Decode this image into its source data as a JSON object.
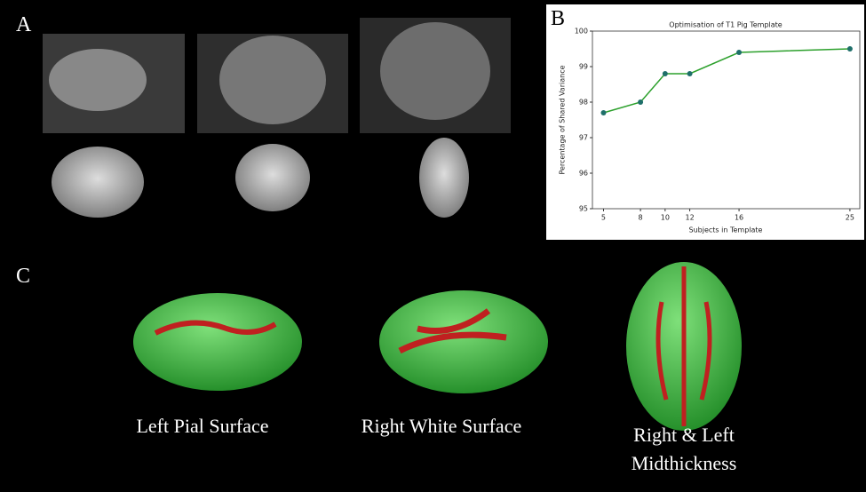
{
  "panels": {
    "a": "A",
    "b": "B",
    "c": "C"
  },
  "captions": {
    "left": "Left Pial Surface",
    "right": "Right White Surface",
    "both": [
      "Right & Left",
      "Midthickness"
    ]
  },
  "chart_data": {
    "type": "line",
    "title": "Optimisation of T1 Pig Template",
    "x_label": "Subjects in Template",
    "y_label": "Percentage of Shared Variance",
    "x": [
      5,
      8,
      10,
      12,
      16,
      25
    ],
    "series": [
      {
        "color": "#2ca02c",
        "marker_color": "#1f6f6a",
        "values": [
          97.7,
          98.0,
          98.8,
          98.8,
          99.4,
          99.5
        ]
      }
    ],
    "xlim": [
      4.1,
      25.8
    ],
    "xticks": [
      5,
      8,
      10,
      12,
      16,
      25
    ],
    "ylim": [
      95,
      100
    ],
    "yticks": [
      95,
      96,
      97,
      98,
      99,
      100
    ]
  }
}
